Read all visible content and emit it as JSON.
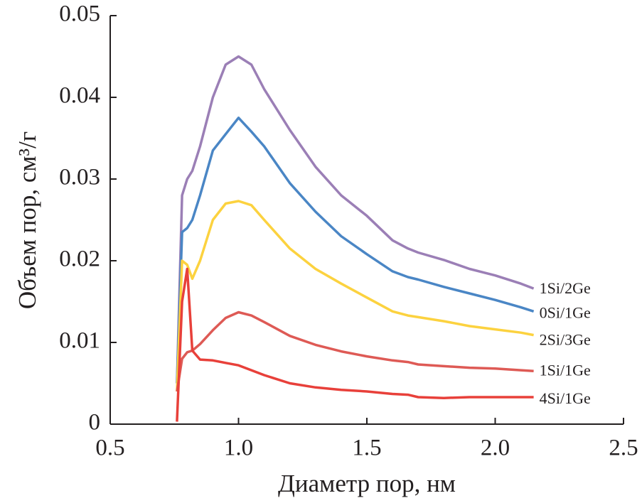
{
  "chart_data": {
    "type": "line",
    "x_label": "Диаметр пор, нм",
    "y_label": "Объем пор, см³/г",
    "x": [
      0.76,
      0.78,
      0.8,
      0.82,
      0.85,
      0.9,
      0.95,
      1.0,
      1.05,
      1.1,
      1.2,
      1.3,
      1.4,
      1.5,
      1.6,
      1.66,
      1.7,
      1.8,
      1.9,
      2.0,
      2.1,
      2.15
    ],
    "series": [
      {
        "name": "1Si/2Ge",
        "color": "#9b7fb6",
        "values": [
          0.005,
          0.028,
          0.03,
          0.031,
          0.034,
          0.04,
          0.044,
          0.045,
          0.044,
          0.041,
          0.036,
          0.0315,
          0.028,
          0.0255,
          0.0225,
          0.0215,
          0.021,
          0.0201,
          0.019,
          0.0182,
          0.0172,
          0.0166
        ]
      },
      {
        "name": "0Si/1Ge",
        "color": "#4a86c5",
        "values": [
          0.005,
          0.0235,
          0.024,
          0.025,
          0.028,
          0.0335,
          0.0355,
          0.0375,
          0.0358,
          0.034,
          0.0295,
          0.026,
          0.023,
          0.0208,
          0.0187,
          0.018,
          0.0177,
          0.0168,
          0.016,
          0.0152,
          0.0143,
          0.0138
        ]
      },
      {
        "name": "2Si/3Ge",
        "color": "#fcd23f",
        "values": [
          0.004,
          0.02,
          0.0195,
          0.0178,
          0.02,
          0.025,
          0.027,
          0.0273,
          0.0268,
          0.025,
          0.0215,
          0.019,
          0.0172,
          0.0155,
          0.0138,
          0.0133,
          0.0131,
          0.0126,
          0.012,
          0.0116,
          0.0112,
          0.0109
        ]
      },
      {
        "name": "1Si/1Ge",
        "color": "#de5a55",
        "values": [
          0.004,
          0.008,
          0.0088,
          0.009,
          0.0098,
          0.0115,
          0.013,
          0.0137,
          0.0133,
          0.0125,
          0.0108,
          0.0097,
          0.0089,
          0.0083,
          0.0078,
          0.0076,
          0.0073,
          0.0071,
          0.0069,
          0.0068,
          0.0066,
          0.0065
        ]
      },
      {
        "name": "4Si/1Ge",
        "color": "#e8403a",
        "values": [
          0.0003,
          0.015,
          0.019,
          0.009,
          0.0079,
          0.0078,
          0.0075,
          0.0072,
          0.0066,
          0.006,
          0.005,
          0.0045,
          0.0042,
          0.004,
          0.0037,
          0.0036,
          0.0033,
          0.0032,
          0.0033,
          0.0033,
          0.0033,
          0.0033
        ]
      }
    ],
    "xlim": [
      0.5,
      2.5
    ],
    "xticks": [
      0.5,
      {
        "value": 1.0,
        "label": "1.0"
      },
      1.5,
      {
        "value": 2.0,
        "label": "2.0"
      },
      2.5
    ],
    "ylim": [
      0,
      0.05
    ],
    "yticks": [
      0,
      0.01,
      0.02,
      0.03,
      0.04,
      0.05
    ]
  }
}
